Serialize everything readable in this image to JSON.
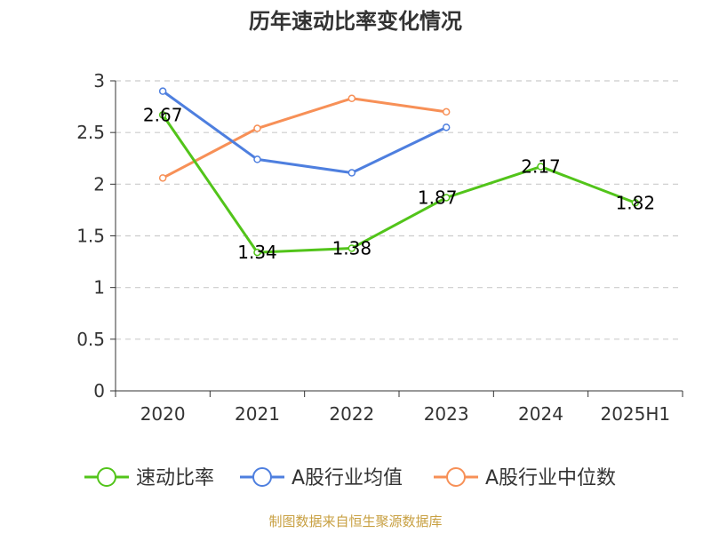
{
  "title": "历年速动比率变化情况",
  "source": "制图数据来自恒生聚源数据库",
  "chart_data": {
    "type": "line",
    "title": "历年速动比率变化情况",
    "xlabel": "",
    "ylabel": "",
    "categories": [
      "2020",
      "2021",
      "2022",
      "2023",
      "2024",
      "2025H1"
    ],
    "ylim": [
      0,
      3
    ],
    "yticks": [
      "0",
      "0.5",
      "1",
      "1.5",
      "2",
      "2.5",
      "3"
    ],
    "grid": true,
    "legend_position": "bottom",
    "series": [
      {
        "name": "速动比率",
        "color": "#52c41a",
        "values": [
          2.67,
          1.34,
          1.38,
          1.87,
          2.17,
          1.82
        ],
        "labels": [
          "2.67",
          "1.34",
          "1.38",
          "1.87",
          "2.17",
          "1.82"
        ]
      },
      {
        "name": "A股行业均值",
        "color": "#4e7fdf",
        "values": [
          2.9,
          2.24,
          2.11,
          2.55,
          null,
          null
        ]
      },
      {
        "name": "A股行业中位数",
        "color": "#f79057",
        "values": [
          2.06,
          2.54,
          2.83,
          2.7,
          null,
          null
        ]
      }
    ]
  }
}
